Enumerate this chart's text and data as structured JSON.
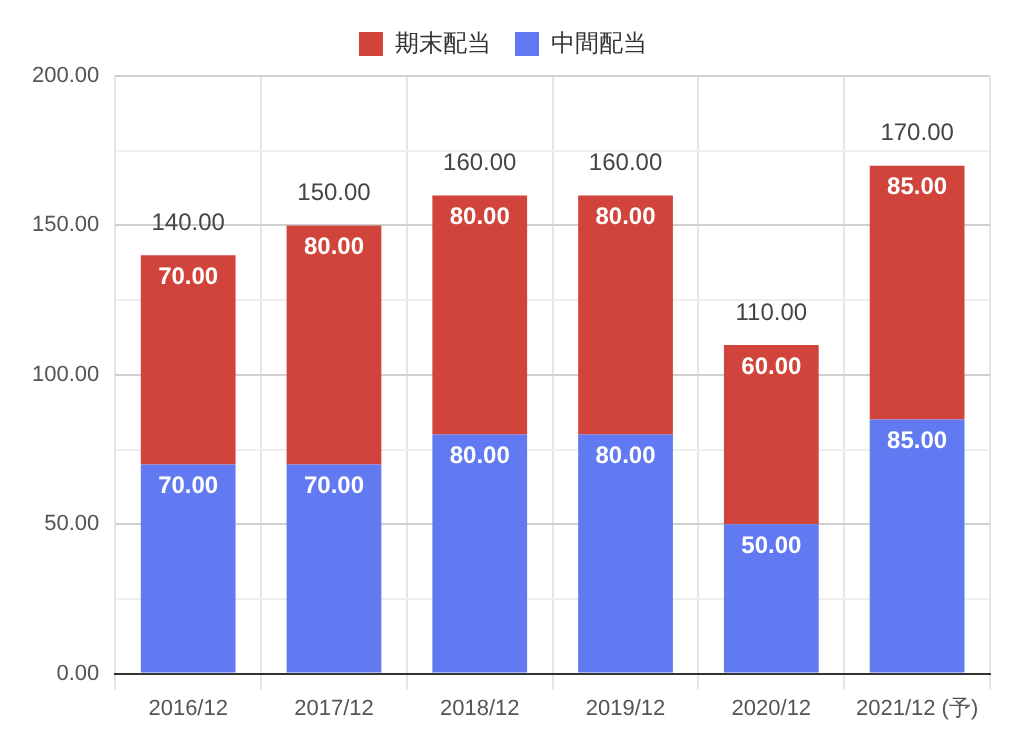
{
  "chart_data": {
    "type": "bar",
    "stacked": true,
    "categories": [
      "2016/12",
      "2017/12",
      "2018/12",
      "2019/12",
      "2020/12",
      "2021/12 (予)"
    ],
    "series": [
      {
        "name": "中間配当",
        "color": "#6179f1",
        "values": [
          70,
          70,
          80,
          80,
          50,
          85
        ],
        "value_labels": [
          "70.00",
          "70.00",
          "80.00",
          "80.00",
          "50.00",
          "85.00"
        ]
      },
      {
        "name": "期末配当",
        "color": "#d0443b",
        "values": [
          70,
          80,
          80,
          80,
          60,
          85
        ],
        "value_labels": [
          "70.00",
          "80.00",
          "80.00",
          "80.00",
          "60.00",
          "85.00"
        ]
      }
    ],
    "totals": [
      "140.00",
      "150.00",
      "160.00",
      "160.00",
      "110.00",
      "170.00"
    ],
    "ylim": [
      0,
      200
    ],
    "yticks": [
      {
        "value": 0,
        "label": "0.00"
      },
      {
        "value": 25,
        "label": null
      },
      {
        "value": 50,
        "label": "50.00"
      },
      {
        "value": 75,
        "label": null
      },
      {
        "value": 100,
        "label": "100.00"
      },
      {
        "value": 125,
        "label": null
      },
      {
        "value": 150,
        "label": "150.00"
      },
      {
        "value": 175,
        "label": null
      },
      {
        "value": 200,
        "label": "200.00"
      }
    ],
    "grid": true,
    "legend": "top"
  }
}
